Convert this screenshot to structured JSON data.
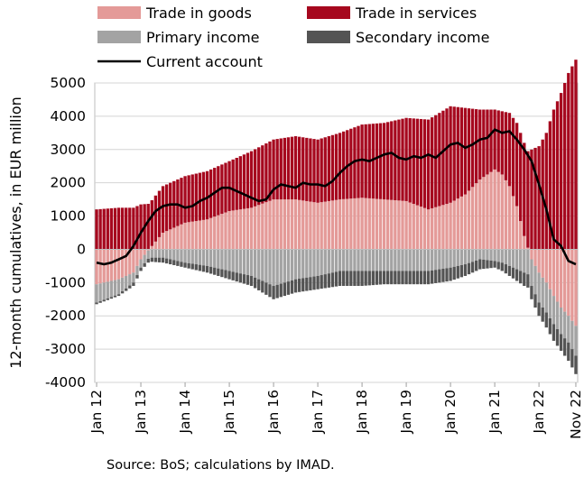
{
  "chart_data": {
    "type": "bar",
    "ylabel": "12-month cumulatives, in EUR million",
    "ylim": [
      -4000,
      5000
    ],
    "yticks": [
      "5000",
      "4000",
      "3000",
      "2000",
      "1000",
      "0",
      "-1000",
      "-2000",
      "-3000",
      "-4000"
    ],
    "yticks_values": [
      5000,
      4000,
      3000,
      2000,
      1000,
      0,
      -1000,
      -2000,
      -3000,
      -4000
    ],
    "x_start": "Jan 12",
    "x_end": "Nov 22",
    "xtick_labels": [
      "Jan 12",
      "Jan 13",
      "Jan 14",
      "Jan 15",
      "Jan 16",
      "Jan 17",
      "Jan 18",
      "Jan 19",
      "Jan 20",
      "Jan 21",
      "Jan 22",
      "Nov 22"
    ],
    "xtick_month_index": [
      0,
      12,
      24,
      36,
      48,
      60,
      72,
      84,
      96,
      108,
      120,
      130
    ],
    "legend_position": "top",
    "source": "Source: BoS; calculations by IMAD.",
    "series_style": {
      "goods": {
        "name": "Trade in goods",
        "color": "#e49a98"
      },
      "services": {
        "name": "Trade in services",
        "color": "#a6081e"
      },
      "primary": {
        "name": "Primary income",
        "color": "#a3a3a3"
      },
      "secondary": {
        "name": "Secondary income",
        "color": "#545454"
      },
      "current": {
        "name": "Current account",
        "color": "#000000"
      }
    },
    "anchors": {
      "goods": [
        [
          0,
          -1050
        ],
        [
          6,
          -900
        ],
        [
          10,
          -700
        ],
        [
          12,
          -300
        ],
        [
          18,
          500
        ],
        [
          24,
          800
        ],
        [
          30,
          900
        ],
        [
          36,
          1150
        ],
        [
          42,
          1250
        ],
        [
          48,
          1500
        ],
        [
          54,
          1500
        ],
        [
          60,
          1400
        ],
        [
          66,
          1500
        ],
        [
          72,
          1550
        ],
        [
          78,
          1500
        ],
        [
          84,
          1450
        ],
        [
          90,
          1200
        ],
        [
          96,
          1400
        ],
        [
          100,
          1650
        ],
        [
          104,
          2100
        ],
        [
          108,
          2400
        ],
        [
          110,
          2250
        ],
        [
          112,
          1900
        ],
        [
          114,
          1300
        ],
        [
          116,
          400
        ],
        [
          118,
          -300
        ],
        [
          120,
          -700
        ],
        [
          122,
          -1000
        ],
        [
          124,
          -1400
        ],
        [
          126,
          -1750
        ],
        [
          128,
          -2000
        ],
        [
          130,
          -2300
        ]
      ],
      "services": [
        [
          0,
          1200
        ],
        [
          6,
          1250
        ],
        [
          10,
          1250
        ],
        [
          12,
          1350
        ],
        [
          18,
          1400
        ],
        [
          24,
          1400
        ],
        [
          30,
          1450
        ],
        [
          36,
          1500
        ],
        [
          42,
          1700
        ],
        [
          48,
          1800
        ],
        [
          54,
          1900
        ],
        [
          60,
          1900
        ],
        [
          66,
          2000
        ],
        [
          72,
          2200
        ],
        [
          78,
          2300
        ],
        [
          84,
          2500
        ],
        [
          90,
          2700
        ],
        [
          96,
          2900
        ],
        [
          100,
          2600
        ],
        [
          104,
          2100
        ],
        [
          108,
          1800
        ],
        [
          110,
          1900
        ],
        [
          112,
          2200
        ],
        [
          114,
          2500
        ],
        [
          116,
          2800
        ],
        [
          118,
          3000
        ],
        [
          120,
          3100
        ],
        [
          122,
          3500
        ],
        [
          124,
          4200
        ],
        [
          126,
          4700
        ],
        [
          128,
          5300
        ],
        [
          130,
          5700
        ]
      ],
      "primary": [
        [
          0,
          -550
        ],
        [
          6,
          -450
        ],
        [
          10,
          -300
        ],
        [
          12,
          -250
        ],
        [
          18,
          -250
        ],
        [
          24,
          -400
        ],
        [
          30,
          -500
        ],
        [
          36,
          -650
        ],
        [
          42,
          -800
        ],
        [
          48,
          -1100
        ],
        [
          54,
          -900
        ],
        [
          60,
          -800
        ],
        [
          66,
          -650
        ],
        [
          72,
          -650
        ],
        [
          78,
          -650
        ],
        [
          84,
          -650
        ],
        [
          90,
          -650
        ],
        [
          96,
          -550
        ],
        [
          100,
          -450
        ],
        [
          104,
          -300
        ],
        [
          108,
          -350
        ],
        [
          110,
          -400
        ],
        [
          112,
          -500
        ],
        [
          114,
          -600
        ],
        [
          116,
          -700
        ],
        [
          118,
          -800
        ],
        [
          120,
          -900
        ],
        [
          122,
          -900
        ],
        [
          124,
          -850
        ],
        [
          126,
          -800
        ],
        [
          128,
          -800
        ],
        [
          130,
          -900
        ]
      ],
      "secondary": [
        [
          0,
          -50
        ],
        [
          6,
          -50
        ],
        [
          10,
          -100
        ],
        [
          12,
          -100
        ],
        [
          18,
          -150
        ],
        [
          24,
          -150
        ],
        [
          30,
          -200
        ],
        [
          36,
          -250
        ],
        [
          42,
          -300
        ],
        [
          48,
          -400
        ],
        [
          54,
          -400
        ],
        [
          60,
          -400
        ],
        [
          66,
          -450
        ],
        [
          72,
          -450
        ],
        [
          78,
          -400
        ],
        [
          84,
          -400
        ],
        [
          90,
          -400
        ],
        [
          96,
          -400
        ],
        [
          100,
          -350
        ],
        [
          104,
          -300
        ],
        [
          108,
          -200
        ],
        [
          110,
          -250
        ],
        [
          112,
          -300
        ],
        [
          114,
          -350
        ],
        [
          116,
          -400
        ],
        [
          118,
          -400
        ],
        [
          120,
          -400
        ],
        [
          122,
          -450
        ],
        [
          124,
          -500
        ],
        [
          126,
          -500
        ],
        [
          128,
          -550
        ],
        [
          130,
          -550
        ]
      ],
      "current": [
        [
          0,
          -400
        ],
        [
          2,
          -450
        ],
        [
          4,
          -400
        ],
        [
          6,
          -300
        ],
        [
          8,
          -200
        ],
        [
          10,
          100
        ],
        [
          12,
          500
        ],
        [
          14,
          850
        ],
        [
          16,
          1150
        ],
        [
          18,
          1300
        ],
        [
          20,
          1350
        ],
        [
          22,
          1350
        ],
        [
          24,
          1250
        ],
        [
          26,
          1300
        ],
        [
          28,
          1450
        ],
        [
          30,
          1550
        ],
        [
          32,
          1700
        ],
        [
          34,
          1850
        ],
        [
          36,
          1850
        ],
        [
          38,
          1750
        ],
        [
          40,
          1650
        ],
        [
          42,
          1550
        ],
        [
          44,
          1450
        ],
        [
          46,
          1500
        ],
        [
          48,
          1800
        ],
        [
          50,
          1950
        ],
        [
          52,
          1900
        ],
        [
          54,
          1850
        ],
        [
          56,
          2000
        ],
        [
          58,
          1950
        ],
        [
          60,
          1950
        ],
        [
          62,
          1900
        ],
        [
          64,
          2050
        ],
        [
          66,
          2300
        ],
        [
          68,
          2500
        ],
        [
          70,
          2650
        ],
        [
          72,
          2700
        ],
        [
          74,
          2650
        ],
        [
          76,
          2750
        ],
        [
          78,
          2850
        ],
        [
          80,
          2900
        ],
        [
          82,
          2750
        ],
        [
          84,
          2700
        ],
        [
          86,
          2800
        ],
        [
          88,
          2750
        ],
        [
          90,
          2850
        ],
        [
          92,
          2750
        ],
        [
          94,
          2950
        ],
        [
          96,
          3150
        ],
        [
          98,
          3200
        ],
        [
          100,
          3050
        ],
        [
          102,
          3150
        ],
        [
          104,
          3300
        ],
        [
          106,
          3350
        ],
        [
          108,
          3600
        ],
        [
          110,
          3500
        ],
        [
          112,
          3550
        ],
        [
          114,
          3300
        ],
        [
          116,
          3000
        ],
        [
          118,
          2650
        ],
        [
          120,
          1950
        ],
        [
          122,
          1200
        ],
        [
          124,
          300
        ],
        [
          126,
          100
        ],
        [
          128,
          -350
        ],
        [
          130,
          -450
        ]
      ]
    }
  }
}
